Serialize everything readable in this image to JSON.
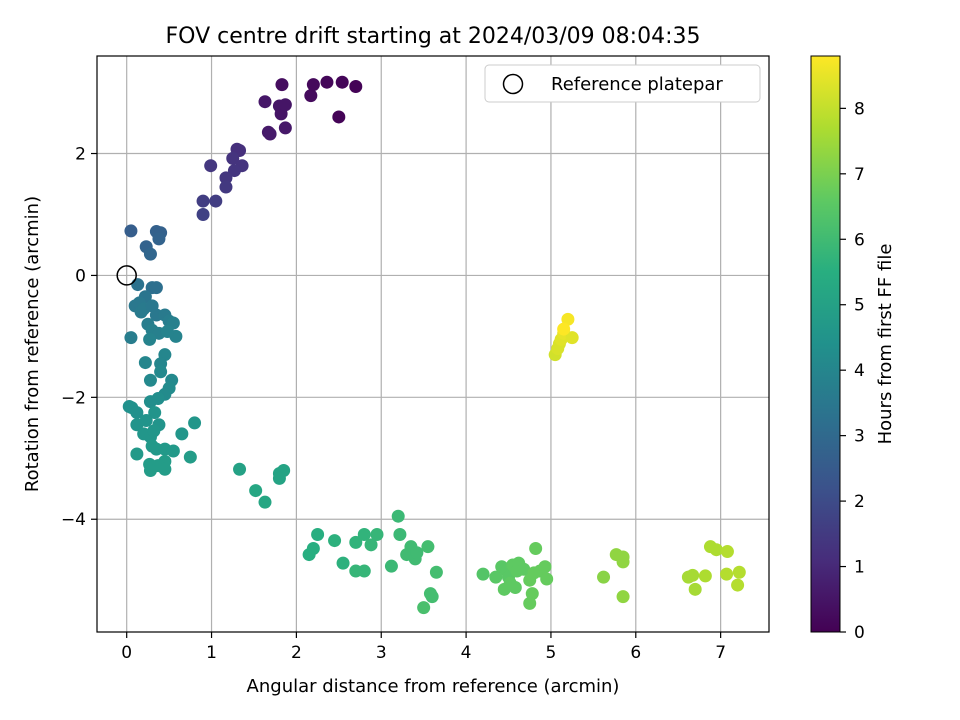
{
  "chart_data": {
    "type": "scatter",
    "title": "FOV centre drift starting at 2024/03/09 08:04:35",
    "xlabel": "Angular distance from reference (arcmin)",
    "ylabel": "Rotation from reference (arcmin)",
    "xlim": [
      -0.35,
      7.57
    ],
    "ylim": [
      -5.85,
      3.6
    ],
    "xticks": [
      0,
      1,
      2,
      3,
      4,
      5,
      6,
      7
    ],
    "yticks": [
      -4,
      -2,
      0,
      2
    ],
    "grid": true,
    "legend": {
      "position": "top-right",
      "entries": [
        "Reference platepar"
      ]
    },
    "reference": {
      "name": "Reference platepar",
      "x": 0,
      "y": 0
    },
    "colorbar": {
      "label": "Hours from first FF file",
      "min": 0,
      "max": 8.8,
      "ticks": [
        0,
        1,
        2,
        3,
        4,
        5,
        6,
        7,
        8
      ],
      "colormap": "viridis"
    },
    "points": [
      {
        "x": 1.63,
        "y": 2.85,
        "h": 0.55
      },
      {
        "x": 1.8,
        "y": 2.78,
        "h": 0.5
      },
      {
        "x": 1.82,
        "y": 2.65,
        "h": 0.48
      },
      {
        "x": 1.87,
        "y": 2.8,
        "h": 0.5
      },
      {
        "x": 1.83,
        "y": 3.13,
        "h": 0.3
      },
      {
        "x": 1.67,
        "y": 2.35,
        "h": 0.6
      },
      {
        "x": 1.69,
        "y": 2.32,
        "h": 0.62
      },
      {
        "x": 1.87,
        "y": 2.42,
        "h": 0.58
      },
      {
        "x": 2.17,
        "y": 2.95,
        "h": 0.25
      },
      {
        "x": 2.2,
        "y": 3.13,
        "h": 0.2
      },
      {
        "x": 2.36,
        "y": 3.17,
        "h": 0.15
      },
      {
        "x": 2.54,
        "y": 3.17,
        "h": 0.1
      },
      {
        "x": 2.7,
        "y": 3.1,
        "h": 0.05
      },
      {
        "x": 2.5,
        "y": 2.6,
        "h": 0.08
      },
      {
        "x": 1.3,
        "y": 2.07,
        "h": 1.2
      },
      {
        "x": 1.33,
        "y": 2.05,
        "h": 1.2
      },
      {
        "x": 1.25,
        "y": 1.92,
        "h": 1.3
      },
      {
        "x": 1.36,
        "y": 1.8,
        "h": 1.3
      },
      {
        "x": 1.27,
        "y": 1.72,
        "h": 1.35
      },
      {
        "x": 1.17,
        "y": 1.6,
        "h": 1.4
      },
      {
        "x": 1.17,
        "y": 1.45,
        "h": 1.45
      },
      {
        "x": 0.99,
        "y": 1.8,
        "h": 1.4
      },
      {
        "x": 0.9,
        "y": 1.22,
        "h": 1.6
      },
      {
        "x": 1.05,
        "y": 1.22,
        "h": 1.6
      },
      {
        "x": 0.9,
        "y": 1.0,
        "h": 1.7
      },
      {
        "x": 0.05,
        "y": 0.73,
        "h": 2.6
      },
      {
        "x": 0.35,
        "y": 0.72,
        "h": 2.7
      },
      {
        "x": 0.4,
        "y": 0.7,
        "h": 2.7
      },
      {
        "x": 0.38,
        "y": 0.6,
        "h": 2.8
      },
      {
        "x": 0.23,
        "y": 0.47,
        "h": 2.8
      },
      {
        "x": 0.28,
        "y": 0.35,
        "h": 2.9
      },
      {
        "x": 0.13,
        "y": -0.15,
        "h": 3.3
      },
      {
        "x": 0.3,
        "y": -0.2,
        "h": 3.2
      },
      {
        "x": 0.35,
        "y": -0.2,
        "h": 3.2
      },
      {
        "x": 0.22,
        "y": -0.35,
        "h": 3.4
      },
      {
        "x": 0.1,
        "y": -0.5,
        "h": 3.5
      },
      {
        "x": 0.15,
        "y": -0.45,
        "h": 3.5
      },
      {
        "x": 0.17,
        "y": -0.6,
        "h": 3.6
      },
      {
        "x": 0.2,
        "y": -0.55,
        "h": 3.6
      },
      {
        "x": 0.3,
        "y": -0.5,
        "h": 3.5
      },
      {
        "x": 0.35,
        "y": -0.65,
        "h": 3.5
      },
      {
        "x": 0.45,
        "y": -0.65,
        "h": 3.6
      },
      {
        "x": 0.5,
        "y": -0.75,
        "h": 3.7
      },
      {
        "x": 0.25,
        "y": -0.8,
        "h": 3.7
      },
      {
        "x": 0.3,
        "y": -0.9,
        "h": 3.8
      },
      {
        "x": 0.38,
        "y": -0.95,
        "h": 3.8
      },
      {
        "x": 0.55,
        "y": -0.78,
        "h": 3.8
      },
      {
        "x": 0.58,
        "y": -1.0,
        "h": 3.9
      },
      {
        "x": 0.48,
        "y": -0.92,
        "h": 3.9
      },
      {
        "x": 0.05,
        "y": -1.02,
        "h": 3.7
      },
      {
        "x": 0.27,
        "y": -1.05,
        "h": 3.9
      },
      {
        "x": 0.45,
        "y": -1.3,
        "h": 4.0
      },
      {
        "x": 0.22,
        "y": -1.43,
        "h": 4.0
      },
      {
        "x": 0.4,
        "y": -1.45,
        "h": 4.0
      },
      {
        "x": 0.4,
        "y": -1.58,
        "h": 4.1
      },
      {
        "x": 0.53,
        "y": -1.72,
        "h": 4.1
      },
      {
        "x": 0.28,
        "y": -1.72,
        "h": 4.1
      },
      {
        "x": 0.5,
        "y": -1.85,
        "h": 4.2
      },
      {
        "x": 0.45,
        "y": -1.95,
        "h": 4.2
      },
      {
        "x": 0.37,
        "y": -2.02,
        "h": 4.3
      },
      {
        "x": 0.28,
        "y": -2.07,
        "h": 4.3
      },
      {
        "x": 0.03,
        "y": -2.15,
        "h": 4.4
      },
      {
        "x": 0.06,
        "y": -2.17,
        "h": 4.4
      },
      {
        "x": 0.12,
        "y": -2.25,
        "h": 4.4
      },
      {
        "x": 0.33,
        "y": -2.25,
        "h": 4.5
      },
      {
        "x": 0.23,
        "y": -2.38,
        "h": 4.5
      },
      {
        "x": 0.12,
        "y": -2.45,
        "h": 4.5
      },
      {
        "x": 0.38,
        "y": -2.45,
        "h": 4.5
      },
      {
        "x": 0.2,
        "y": -2.6,
        "h": 4.6
      },
      {
        "x": 0.28,
        "y": -2.65,
        "h": 4.6
      },
      {
        "x": 0.32,
        "y": -2.55,
        "h": 4.6
      },
      {
        "x": 0.8,
        "y": -2.42,
        "h": 4.6
      },
      {
        "x": 0.65,
        "y": -2.6,
        "h": 4.6
      },
      {
        "x": 0.3,
        "y": -2.8,
        "h": 4.7
      },
      {
        "x": 0.35,
        "y": -2.85,
        "h": 4.7
      },
      {
        "x": 0.45,
        "y": -2.85,
        "h": 4.7
      },
      {
        "x": 0.55,
        "y": -2.88,
        "h": 4.7
      },
      {
        "x": 0.12,
        "y": -2.93,
        "h": 4.7
      },
      {
        "x": 0.45,
        "y": -3.05,
        "h": 4.8
      },
      {
        "x": 0.75,
        "y": -2.98,
        "h": 4.8
      },
      {
        "x": 0.27,
        "y": -3.1,
        "h": 4.8
      },
      {
        "x": 0.37,
        "y": -3.12,
        "h": 4.8
      },
      {
        "x": 0.45,
        "y": -3.18,
        "h": 4.8
      },
      {
        "x": 0.28,
        "y": -3.2,
        "h": 4.8
      },
      {
        "x": 1.33,
        "y": -3.18,
        "h": 5.0
      },
      {
        "x": 1.8,
        "y": -3.25,
        "h": 5.1
      },
      {
        "x": 1.85,
        "y": -3.2,
        "h": 5.1
      },
      {
        "x": 1.8,
        "y": -3.33,
        "h": 5.1
      },
      {
        "x": 1.52,
        "y": -3.53,
        "h": 5.2
      },
      {
        "x": 1.63,
        "y": -3.72,
        "h": 5.2
      },
      {
        "x": 2.25,
        "y": -4.25,
        "h": 5.5
      },
      {
        "x": 2.2,
        "y": -4.48,
        "h": 5.5
      },
      {
        "x": 2.15,
        "y": -4.58,
        "h": 5.5
      },
      {
        "x": 2.45,
        "y": -4.35,
        "h": 5.6
      },
      {
        "x": 2.55,
        "y": -4.72,
        "h": 5.6
      },
      {
        "x": 2.7,
        "y": -4.38,
        "h": 5.7
      },
      {
        "x": 2.8,
        "y": -4.25,
        "h": 5.7
      },
      {
        "x": 2.88,
        "y": -4.42,
        "h": 5.8
      },
      {
        "x": 2.95,
        "y": -4.25,
        "h": 5.8
      },
      {
        "x": 2.7,
        "y": -4.85,
        "h": 5.8
      },
      {
        "x": 2.8,
        "y": -4.85,
        "h": 5.8
      },
      {
        "x": 3.12,
        "y": -4.77,
        "h": 5.9
      },
      {
        "x": 3.2,
        "y": -3.95,
        "h": 5.9
      },
      {
        "x": 3.22,
        "y": -4.25,
        "h": 5.9
      },
      {
        "x": 3.35,
        "y": -4.45,
        "h": 6.0
      },
      {
        "x": 3.3,
        "y": -4.58,
        "h": 6.0
      },
      {
        "x": 3.4,
        "y": -4.65,
        "h": 6.0
      },
      {
        "x": 3.42,
        "y": -4.55,
        "h": 6.0
      },
      {
        "x": 3.55,
        "y": -4.45,
        "h": 6.1
      },
      {
        "x": 3.65,
        "y": -4.87,
        "h": 6.1
      },
      {
        "x": 3.58,
        "y": -5.22,
        "h": 6.1
      },
      {
        "x": 3.6,
        "y": -5.27,
        "h": 6.1
      },
      {
        "x": 3.5,
        "y": -5.45,
        "h": 6.2
      },
      {
        "x": 4.2,
        "y": -4.9,
        "h": 6.4
      },
      {
        "x": 4.35,
        "y": -4.95,
        "h": 6.5
      },
      {
        "x": 4.42,
        "y": -4.78,
        "h": 6.5
      },
      {
        "x": 4.48,
        "y": -4.85,
        "h": 6.5
      },
      {
        "x": 4.5,
        "y": -4.95,
        "h": 6.5
      },
      {
        "x": 4.55,
        "y": -4.75,
        "h": 6.6
      },
      {
        "x": 4.6,
        "y": -4.85,
        "h": 6.6
      },
      {
        "x": 4.62,
        "y": -4.72,
        "h": 6.6
      },
      {
        "x": 4.68,
        "y": -4.82,
        "h": 6.6
      },
      {
        "x": 4.52,
        "y": -5.05,
        "h": 6.6
      },
      {
        "x": 4.58,
        "y": -5.12,
        "h": 6.6
      },
      {
        "x": 4.45,
        "y": -5.15,
        "h": 6.6
      },
      {
        "x": 4.75,
        "y": -5.0,
        "h": 6.7
      },
      {
        "x": 4.82,
        "y": -4.48,
        "h": 6.7
      },
      {
        "x": 4.8,
        "y": -4.88,
        "h": 6.7
      },
      {
        "x": 4.87,
        "y": -4.85,
        "h": 6.7
      },
      {
        "x": 4.93,
        "y": -4.78,
        "h": 6.7
      },
      {
        "x": 4.95,
        "y": -4.98,
        "h": 6.7
      },
      {
        "x": 4.78,
        "y": -5.22,
        "h": 6.7
      },
      {
        "x": 4.75,
        "y": -5.38,
        "h": 6.7
      },
      {
        "x": 5.62,
        "y": -4.95,
        "h": 7.2
      },
      {
        "x": 5.77,
        "y": -4.58,
        "h": 7.3
      },
      {
        "x": 5.85,
        "y": -4.62,
        "h": 7.3
      },
      {
        "x": 5.85,
        "y": -4.7,
        "h": 7.3
      },
      {
        "x": 5.85,
        "y": -5.27,
        "h": 7.3
      },
      {
        "x": 6.62,
        "y": -4.95,
        "h": 7.6
      },
      {
        "x": 6.67,
        "y": -4.92,
        "h": 7.6
      },
      {
        "x": 6.7,
        "y": -5.15,
        "h": 7.6
      },
      {
        "x": 6.82,
        "y": -4.93,
        "h": 7.7
      },
      {
        "x": 6.88,
        "y": -4.45,
        "h": 7.7
      },
      {
        "x": 6.95,
        "y": -4.5,
        "h": 7.7
      },
      {
        "x": 7.08,
        "y": -4.53,
        "h": 7.8
      },
      {
        "x": 7.07,
        "y": -4.9,
        "h": 7.8
      },
      {
        "x": 7.22,
        "y": -4.87,
        "h": 7.8
      },
      {
        "x": 7.2,
        "y": -5.08,
        "h": 7.8
      },
      {
        "x": 5.05,
        "y": -1.3,
        "h": 8.2
      },
      {
        "x": 5.08,
        "y": -1.2,
        "h": 8.3
      },
      {
        "x": 5.1,
        "y": -1.12,
        "h": 8.3
      },
      {
        "x": 5.12,
        "y": -1.05,
        "h": 8.4
      },
      {
        "x": 5.15,
        "y": -0.95,
        "h": 8.5
      },
      {
        "x": 5.25,
        "y": -1.02,
        "h": 8.4
      },
      {
        "x": 5.2,
        "y": -0.72,
        "h": 8.7
      },
      {
        "x": 5.15,
        "y": -0.88,
        "h": 8.8
      }
    ]
  }
}
